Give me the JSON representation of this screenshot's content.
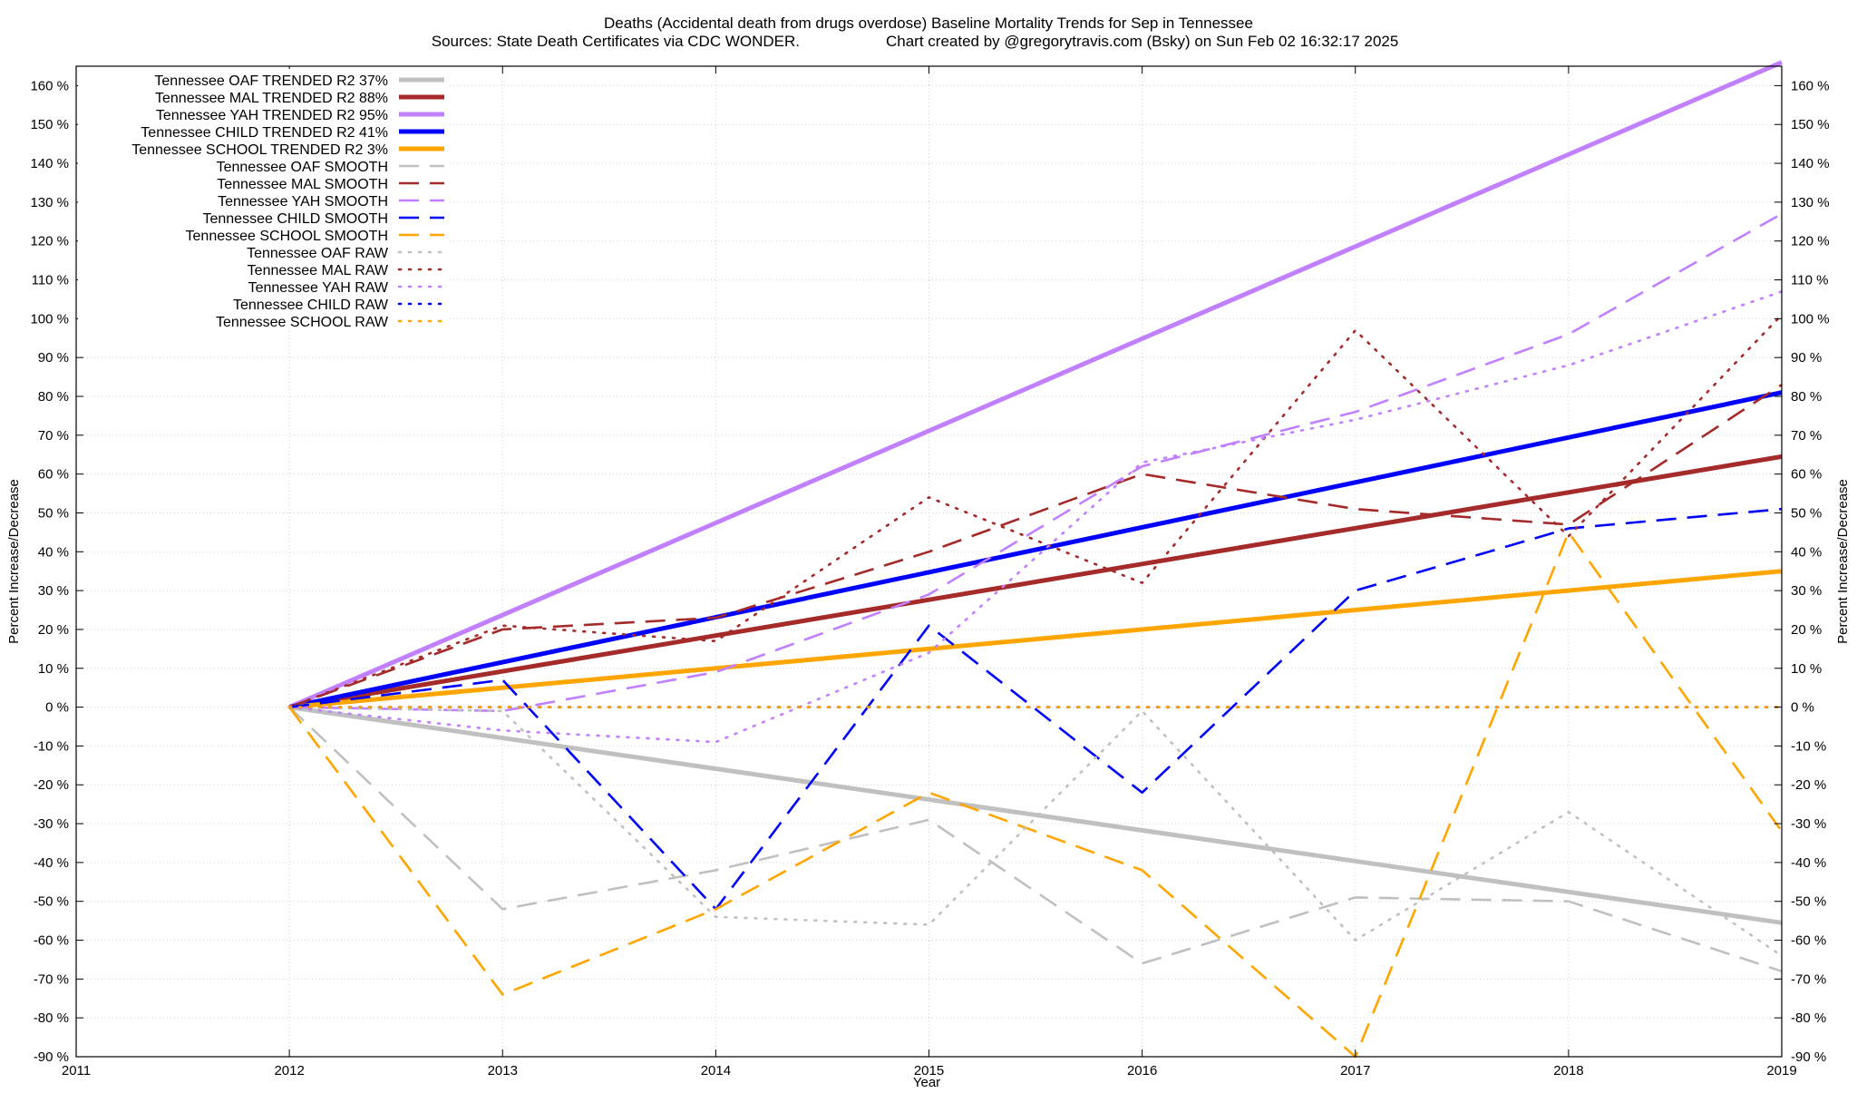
{
  "chart_data": {
    "type": "line",
    "title": "Deaths (Accidental death from drugs overdose)  Baseline Mortality Trends for Sep in Tennessee",
    "subtitle_left": "Sources: State Death Certificates via CDC WONDER.",
    "subtitle_right": "Chart created by @gregorytravis.com (Bsky) on Sun Feb 02 16:32:17 2025",
    "xlabel": "Year",
    "ylabel": "Percent Increase/Decrease",
    "ylabel_right": "Percent Increase/Decrease",
    "xlim": [
      2011,
      2019
    ],
    "ylim": [
      -90,
      165
    ],
    "x_ticks": [
      "2011",
      "2012",
      "2013",
      "2014",
      "2015",
      "2016",
      "2017",
      "2018",
      "2019"
    ],
    "y_ticks": [
      "-90 %",
      "-80 %",
      "-70 %",
      "-60 %",
      "-50 %",
      "-40 %",
      "-30 %",
      "-20 %",
      "-10 %",
      "0 %",
      "10 %",
      "20 %",
      "30 %",
      "40 %",
      "50 %",
      "60 %",
      "70 %",
      "80 %",
      "90 %",
      "100 %",
      "110 %",
      "120 %",
      "130 %",
      "140 %",
      "150 %",
      "160 %"
    ],
    "grid": true,
    "legend_position": "top-left",
    "series": [
      {
        "name": "Tennessee OAF TRENDED R2  37%",
        "color": "#c0c0c0",
        "style": "solid",
        "x": [
          2012,
          2019
        ],
        "y": [
          0,
          -55.5
        ]
      },
      {
        "name": "Tennessee MAL TRENDED R2  88%",
        "color": "#a52a2a",
        "style": "solid",
        "x": [
          2012,
          2019
        ],
        "y": [
          0,
          64.5
        ]
      },
      {
        "name": "Tennessee YAH TRENDED R2  95%",
        "color": "#c080ff",
        "style": "solid",
        "x": [
          2012,
          2019
        ],
        "y": [
          0,
          166
        ]
      },
      {
        "name": "Tennessee CHILD TRENDED R2  41%",
        "color": "#0000ff",
        "style": "solid",
        "x": [
          2012,
          2019
        ],
        "y": [
          0,
          81
        ]
      },
      {
        "name": "Tennessee SCHOOL TRENDED R2   3%",
        "color": "#ffa500",
        "style": "solid",
        "x": [
          2012,
          2019
        ],
        "y": [
          0,
          35
        ]
      },
      {
        "name": "Tennessee OAF SMOOTH",
        "color": "#c0c0c0",
        "style": "dashed",
        "x": [
          2012,
          2013,
          2014,
          2015,
          2016,
          2017,
          2018,
          2019
        ],
        "y": [
          0,
          -52,
          -42,
          -29,
          -66,
          -49,
          -50,
          -68
        ]
      },
      {
        "name": "Tennessee MAL SMOOTH",
        "color": "#a52a2a",
        "style": "dashed",
        "x": [
          2012,
          2013,
          2014,
          2015,
          2016,
          2017,
          2018,
          2019
        ],
        "y": [
          0,
          20,
          23,
          40,
          60,
          51,
          47,
          83
        ]
      },
      {
        "name": "Tennessee YAH SMOOTH",
        "color": "#c080ff",
        "style": "dashed",
        "x": [
          2012,
          2013,
          2014,
          2015,
          2016,
          2017,
          2018,
          2019
        ],
        "y": [
          0,
          -1,
          9,
          29,
          62,
          76,
          96,
          127
        ]
      },
      {
        "name": "Tennessee CHILD SMOOTH",
        "color": "#0000ff",
        "style": "dashed",
        "x": [
          2012,
          2013,
          2014,
          2015,
          2016,
          2017,
          2018,
          2019
        ],
        "y": [
          0,
          7,
          -52,
          21,
          -22,
          30,
          46,
          51
        ]
      },
      {
        "name": "Tennessee SCHOOL SMOOTH",
        "color": "#ffa500",
        "style": "dashed",
        "x": [
          2012,
          2013,
          2014,
          2015,
          2016,
          2017,
          2018,
          2019
        ],
        "y": [
          0,
          -74,
          -52,
          -22,
          -42,
          -90,
          45,
          -32
        ]
      },
      {
        "name": "Tennessee OAF RAW",
        "color": "#c0c0c0",
        "style": "dotted",
        "x": [
          2012,
          2013,
          2014,
          2015,
          2016,
          2017,
          2018,
          2019
        ],
        "y": [
          0,
          -1,
          -54,
          -56,
          -1,
          -60,
          -27,
          -64
        ]
      },
      {
        "name": "Tennessee MAL RAW",
        "color": "#a52a2a",
        "style": "dotted",
        "x": [
          2012,
          2013,
          2014,
          2015,
          2016,
          2017,
          2018,
          2019
        ],
        "y": [
          0,
          21,
          17,
          54,
          32,
          97,
          44,
          101
        ]
      },
      {
        "name": "Tennessee YAH RAW",
        "color": "#c080ff",
        "style": "dotted",
        "x": [
          2012,
          2013,
          2014,
          2015,
          2016,
          2017,
          2018,
          2019
        ],
        "y": [
          0,
          -6,
          -9,
          14,
          63,
          74,
          88,
          107
        ]
      },
      {
        "name": "Tennessee CHILD RAW",
        "color": "#0000ff",
        "style": "dotted",
        "x": [
          2012,
          2013,
          2014,
          2015,
          2016,
          2017,
          2018,
          2019
        ],
        "y": [
          0,
          0,
          0,
          0,
          0,
          0,
          0,
          0
        ]
      },
      {
        "name": "Tennessee SCHOOL RAW",
        "color": "#ffa500",
        "style": "dotted",
        "x": [
          2012,
          2013,
          2014,
          2015,
          2016,
          2017,
          2018,
          2019
        ],
        "y": [
          0,
          0,
          0,
          0,
          0,
          0,
          0,
          0
        ]
      }
    ]
  }
}
